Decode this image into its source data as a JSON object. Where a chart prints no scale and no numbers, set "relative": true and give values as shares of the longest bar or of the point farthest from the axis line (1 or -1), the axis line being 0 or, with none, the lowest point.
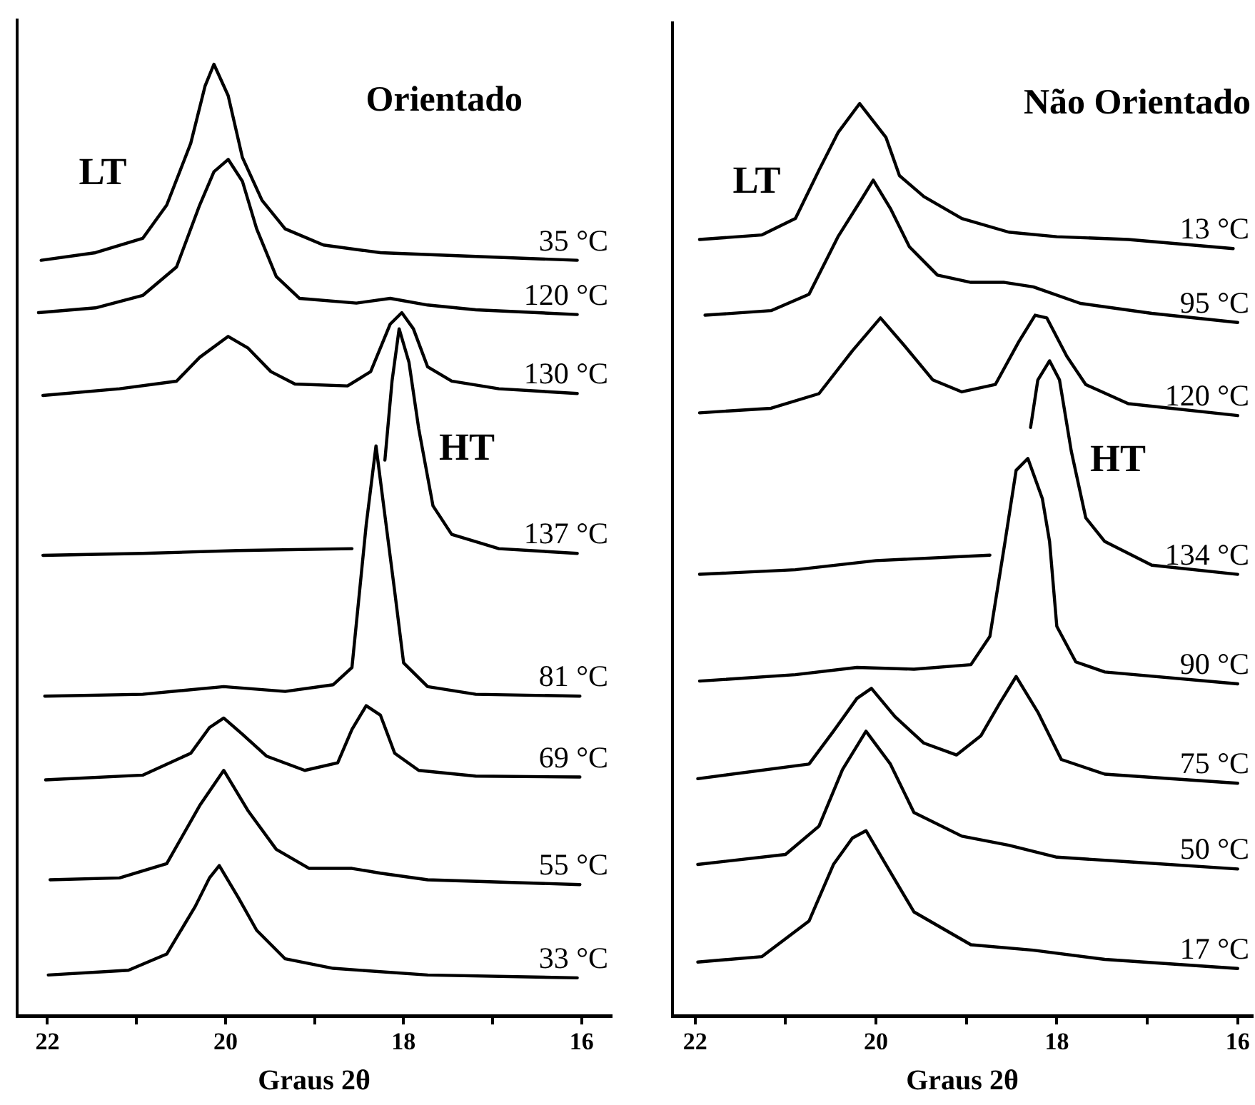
{
  "chart_data": [
    {
      "type": "line",
      "title": "Orientado",
      "xlabel": "Graus 2θ",
      "relative": true,
      "legend": false,
      "grid": false,
      "marker": "none",
      "line_style": "solid",
      "xlim": [
        22.34,
        15.67
      ],
      "xticks": [
        22,
        {
          "value": 21,
          "label": null
        },
        20,
        {
          "value": 19,
          "label": null
        },
        18,
        {
          "value": 17,
          "label": null
        },
        16
      ],
      "annotations": [
        "LT",
        "HT"
      ],
      "series": [
        {
          "name": "35 °C",
          "color": "#000000",
          "x": [
            22.07,
            21.46,
            20.93,
            20.66,
            20.39,
            20.23,
            20.13,
            19.97,
            19.81,
            19.59,
            19.33,
            18.9,
            18.26,
            17.19,
            16.05
          ],
          "values": [
            0.794,
            0.802,
            0.817,
            0.852,
            0.917,
            0.977,
            1.0,
            0.967,
            0.902,
            0.857,
            0.827,
            0.81,
            0.802,
            0.798,
            0.794
          ]
        },
        {
          "name": "120 °C",
          "color": "#000000",
          "x": [
            22.1,
            21.46,
            20.93,
            20.55,
            20.29,
            20.13,
            19.97,
            19.81,
            19.65,
            19.43,
            19.17,
            18.53,
            18.15,
            17.73,
            17.19,
            16.05
          ],
          "values": [
            0.739,
            0.744,
            0.757,
            0.787,
            0.852,
            0.887,
            0.9,
            0.877,
            0.827,
            0.777,
            0.754,
            0.749,
            0.754,
            0.747,
            0.742,
            0.737
          ]
        },
        {
          "name": "130 °C",
          "color": "#000000",
          "x": [
            22.05,
            21.19,
            20.55,
            20.29,
            19.97,
            19.75,
            19.49,
            19.22,
            18.63,
            18.37,
            18.15,
            18.02,
            17.89,
            17.73,
            17.46,
            16.93,
            16.05
          ],
          "values": [
            0.652,
            0.659,
            0.667,
            0.692,
            0.714,
            0.702,
            0.677,
            0.664,
            0.662,
            0.677,
            0.727,
            0.739,
            0.722,
            0.682,
            0.667,
            0.659,
            0.654
          ]
        },
        {
          "name": "137 °C",
          "color": "#000000",
          "x": [
            22.05,
            20.93,
            19.86,
            18.58,
            18.4,
            18.21,
            18.13,
            18.05,
            17.94,
            17.83,
            17.67,
            17.46,
            16.93,
            16.05
          ],
          "values": [
            0.484,
            0.486,
            0.489,
            0.491,
            null,
            0.584,
            0.667,
            0.722,
            0.687,
            0.617,
            0.536,
            0.506,
            0.491,
            0.486
          ]
        },
        {
          "name": "81 °C",
          "color": "#000000",
          "x": [
            22.03,
            20.93,
            20.02,
            19.33,
            18.79,
            18.58,
            18.42,
            18.31,
            18.21,
            18.1,
            18.0,
            17.73,
            17.19,
            16.02
          ],
          "values": [
            0.336,
            0.338,
            0.346,
            0.341,
            0.348,
            0.366,
            0.516,
            0.599,
            0.526,
            0.446,
            0.371,
            0.346,
            0.338,
            0.336
          ]
        },
        {
          "name": "69 °C",
          "color": "#000000",
          "x": [
            22.02,
            20.93,
            20.39,
            20.18,
            20.02,
            19.81,
            19.54,
            19.11,
            18.74,
            18.58,
            18.42,
            18.26,
            18.1,
            17.83,
            17.19,
            16.02
          ],
          "values": [
            0.248,
            0.253,
            0.276,
            0.303,
            0.313,
            0.296,
            0.273,
            0.258,
            0.266,
            0.301,
            0.326,
            0.316,
            0.276,
            0.258,
            0.252,
            0.251
          ]
        },
        {
          "name": "55 °C",
          "color": "#000000",
          "x": [
            21.97,
            21.19,
            20.66,
            20.29,
            20.02,
            19.75,
            19.43,
            19.06,
            18.58,
            18.26,
            17.73,
            16.02
          ],
          "values": [
            0.143,
            0.145,
            0.16,
            0.221,
            0.258,
            0.216,
            0.175,
            0.155,
            0.155,
            0.15,
            0.143,
            0.138
          ]
        },
        {
          "name": "33 °C",
          "color": "#000000",
          "x": [
            21.99,
            21.09,
            20.66,
            20.34,
            20.18,
            20.07,
            19.86,
            19.65,
            19.33,
            18.79,
            17.73,
            16.05
          ],
          "values": [
            0.043,
            0.048,
            0.065,
            0.115,
            0.145,
            0.158,
            0.125,
            0.09,
            0.06,
            0.05,
            0.043,
            0.04
          ]
        }
      ]
    },
    {
      "type": "line",
      "title": "Não Orientado",
      "xlabel": "Graus 2θ",
      "relative": true,
      "legend": false,
      "grid": false,
      "marker": "none",
      "line_style": "solid",
      "xlim": [
        22.25,
        15.84
      ],
      "xticks": [
        22,
        {
          "value": 21,
          "label": null
        },
        20,
        {
          "value": 19,
          "label": null
        },
        18,
        {
          "value": 17,
          "label": null
        },
        16
      ],
      "annotations": [
        "LT",
        "HT"
      ],
      "series": [
        {
          "name": "13 °C",
          "color": "#000000",
          "x": [
            21.95,
            21.26,
            20.89,
            20.63,
            20.42,
            20.18,
            19.89,
            19.74,
            19.47,
            19.05,
            18.53,
            18.0,
            17.21,
            16.05
          ],
          "values": [
            0.851,
            0.856,
            0.874,
            0.927,
            0.968,
            1.0,
            0.963,
            0.921,
            0.898,
            0.874,
            0.859,
            0.854,
            0.851,
            0.841
          ]
        },
        {
          "name": "95 °C",
          "color": "#000000",
          "x": [
            21.89,
            21.16,
            20.74,
            20.42,
            20.16,
            20.03,
            19.84,
            19.63,
            19.32,
            18.95,
            18.58,
            18.26,
            17.74,
            16.95,
            16.0
          ],
          "values": [
            0.768,
            0.773,
            0.791,
            0.854,
            0.895,
            0.916,
            0.885,
            0.843,
            0.812,
            0.804,
            0.804,
            0.799,
            0.781,
            0.77,
            0.76
          ]
        },
        {
          "name": "120 °C",
          "color": "#000000",
          "x": [
            21.95,
            21.16,
            20.63,
            20.26,
            19.95,
            19.68,
            19.37,
            19.05,
            18.68,
            18.42,
            18.24,
            18.11,
            17.89,
            17.68,
            17.21,
            16.0
          ],
          "values": [
            0.661,
            0.666,
            0.682,
            0.729,
            0.765,
            0.734,
            0.697,
            0.684,
            0.692,
            0.739,
            0.768,
            0.765,
            0.723,
            0.692,
            0.671,
            0.658
          ]
        },
        {
          "name": "134 °C",
          "color": "#000000",
          "x": [
            21.95,
            20.89,
            20.0,
            18.74,
            18.55,
            18.29,
            18.21,
            18.08,
            17.97,
            17.84,
            17.68,
            17.47,
            16.95,
            16.0
          ],
          "values": [
            0.484,
            0.489,
            0.499,
            0.505,
            null,
            0.645,
            0.697,
            0.718,
            0.697,
            0.619,
            0.546,
            0.52,
            0.494,
            0.484
          ]
        },
        {
          "name": "90 °C",
          "color": "#000000",
          "x": [
            21.95,
            20.89,
            20.21,
            19.58,
            18.95,
            18.74,
            18.58,
            18.45,
            18.32,
            18.16,
            18.08,
            18.0,
            17.79,
            17.47,
            16.0
          ],
          "values": [
            0.367,
            0.374,
            0.382,
            0.38,
            0.385,
            0.416,
            0.515,
            0.598,
            0.611,
            0.567,
            0.52,
            0.427,
            0.388,
            0.377,
            0.364
          ]
        },
        {
          "name": "75 °C",
          "color": "#000000",
          "x": [
            21.97,
            20.74,
            20.47,
            20.21,
            20.05,
            19.79,
            19.47,
            19.11,
            18.84,
            18.63,
            18.45,
            18.21,
            17.95,
            17.47,
            16.0
          ],
          "values": [
            0.26,
            0.276,
            0.312,
            0.348,
            0.359,
            0.328,
            0.299,
            0.286,
            0.307,
            0.343,
            0.372,
            0.333,
            0.281,
            0.265,
            0.255
          ]
        },
        {
          "name": "50 °C",
          "color": "#000000",
          "x": [
            21.97,
            21.0,
            20.63,
            20.37,
            20.11,
            19.84,
            19.58,
            19.05,
            18.53,
            18.0,
            17.21,
            16.0
          ],
          "values": [
            0.166,
            0.177,
            0.208,
            0.27,
            0.312,
            0.276,
            0.223,
            0.197,
            0.187,
            0.174,
            0.169,
            0.161
          ]
        },
        {
          "name": "17 °C",
          "color": "#000000",
          "x": [
            21.97,
            21.26,
            20.74,
            20.47,
            20.26,
            20.11,
            19.89,
            19.58,
            18.95,
            18.26,
            17.47,
            16.0
          ],
          "values": [
            0.059,
            0.065,
            0.104,
            0.166,
            0.195,
            0.203,
            0.166,
            0.114,
            0.078,
            0.072,
            0.062,
            0.052
          ]
        }
      ]
    }
  ]
}
